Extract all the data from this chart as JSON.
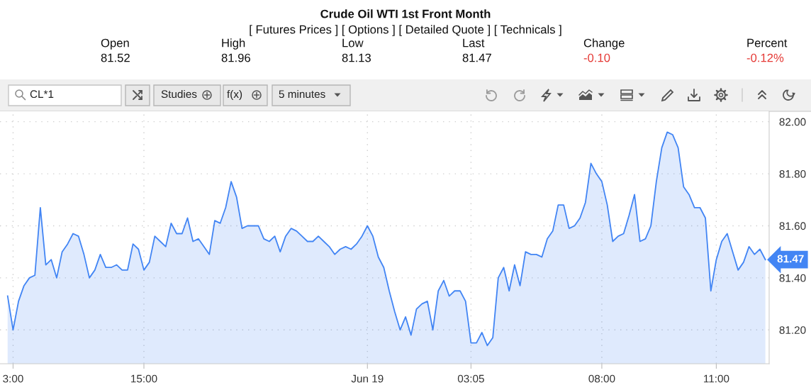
{
  "chart_data": {
    "type": "area",
    "title": "Crude Oil WTI 1st Front Month",
    "subtitle": "[ Futures Prices ] [ Options ] [ Detailed Quote ] [ Technicals ]",
    "annotations": [
      "Open",
      "81.52",
      "High",
      "81.96",
      "Low",
      "81.13",
      "Last",
      "81.47",
      "Change",
      "-0.10",
      "Percent",
      "-0.12%",
      "CL*1",
      "Studies",
      "f(x)",
      "5 minutes"
    ],
    "categories": [
      null,
      "3:00",
      null,
      null,
      null,
      null,
      null,
      null,
      null,
      null,
      null,
      null,
      null,
      null,
      null,
      null,
      null,
      null,
      null,
      null,
      null,
      null,
      null,
      null,
      null,
      "15:00",
      null,
      null,
      null,
      null,
      null,
      null,
      null,
      null,
      null,
      null,
      null,
      null,
      null,
      null,
      null,
      null,
      null,
      null,
      null,
      null,
      null,
      null,
      null,
      null,
      null,
      null,
      null,
      null,
      null,
      null,
      null,
      null,
      null,
      null,
      null,
      null,
      null,
      null,
      null,
      null,
      "Jun 19",
      null,
      null,
      null,
      null,
      null,
      null,
      null,
      null,
      null,
      null,
      null,
      null,
      null,
      null,
      null,
      null,
      null,
      null,
      "03:05",
      null,
      null,
      null,
      null,
      null,
      null,
      null,
      null,
      null,
      null,
      null,
      null,
      null,
      null,
      null,
      null,
      null,
      null,
      null,
      null,
      null,
      null,
      null,
      "08:00",
      null,
      null,
      null,
      null,
      null,
      null,
      null,
      null,
      null,
      null,
      null,
      null,
      null,
      null,
      null,
      null,
      null,
      null,
      null,
      null,
      "11:00",
      null,
      null,
      null,
      null,
      null,
      null,
      null,
      null,
      null
    ],
    "series": [
      {
        "color": "#4285f4",
        "values": [
          81.33,
          81.2,
          81.31,
          81.37,
          81.4,
          81.41,
          81.67,
          81.45,
          81.47,
          81.4,
          81.5,
          81.53,
          81.57,
          81.56,
          81.49,
          81.4,
          81.43,
          81.49,
          81.44,
          81.44,
          81.45,
          81.43,
          81.43,
          81.53,
          81.51,
          81.43,
          81.46,
          81.56,
          81.54,
          81.52,
          81.61,
          81.57,
          81.57,
          81.63,
          81.54,
          81.55,
          81.52,
          81.49,
          81.62,
          81.61,
          81.67,
          81.77,
          81.71,
          81.59,
          81.6,
          81.6,
          81.6,
          81.55,
          81.54,
          81.56,
          81.5,
          81.56,
          81.59,
          81.58,
          81.56,
          81.54,
          81.54,
          81.56,
          81.54,
          81.52,
          81.49,
          81.51,
          81.52,
          81.51,
          81.53,
          81.56,
          81.6,
          81.56,
          81.48,
          81.44,
          81.35,
          81.27,
          81.2,
          81.25,
          81.18,
          81.28,
          81.3,
          81.31,
          81.2,
          81.35,
          81.39,
          81.33,
          81.35,
          81.35,
          81.31,
          81.15,
          81.15,
          81.19,
          81.14,
          81.17,
          81.4,
          81.44,
          81.35,
          81.45,
          81.37,
          81.5,
          81.49,
          81.49,
          81.48,
          81.55,
          81.58,
          81.68,
          81.68,
          81.59,
          81.6,
          81.63,
          81.69,
          81.84,
          81.8,
          81.77,
          81.68,
          81.54,
          81.56,
          81.57,
          81.64,
          81.72,
          81.54,
          81.55,
          81.6,
          81.77,
          81.9,
          81.96,
          81.95,
          81.9,
          81.75,
          81.72,
          81.67,
          81.67,
          81.63,
          81.35,
          81.47,
          81.54,
          81.57,
          81.5,
          81.43,
          81.46,
          81.52,
          81.49,
          81.51,
          81.47
        ],
        "value_labels": [
          null,
          null,
          null,
          null,
          null,
          null,
          null,
          null,
          null,
          null,
          null,
          null,
          null,
          null,
          null,
          null,
          null,
          null,
          null,
          null,
          null,
          null,
          null,
          null,
          null,
          null,
          null,
          null,
          null,
          null,
          null,
          null,
          null,
          null,
          null,
          null,
          null,
          null,
          null,
          null,
          null,
          null,
          null,
          null,
          null,
          null,
          null,
          null,
          null,
          null,
          null,
          null,
          null,
          null,
          null,
          null,
          null,
          null,
          null,
          null,
          null,
          null,
          null,
          null,
          null,
          null,
          null,
          null,
          null,
          null,
          null,
          null,
          null,
          null,
          null,
          null,
          null,
          null,
          null,
          null,
          null,
          null,
          null,
          null,
          null,
          null,
          null,
          null,
          null,
          null,
          null,
          null,
          null,
          null,
          null,
          null,
          null,
          null,
          null,
          null,
          null,
          null,
          null,
          null,
          null,
          null,
          null,
          null,
          null,
          null,
          null,
          null,
          null,
          null,
          null,
          null,
          null,
          null,
          null,
          null,
          null,
          null,
          null,
          null,
          null,
          null,
          null,
          null,
          null,
          null,
          null,
          null,
          null,
          null,
          null,
          null,
          null,
          null,
          null,
          "81.47"
        ]
      }
    ],
    "ylim": [
      81.07,
      82.04
    ],
    "yticks": [
      {
        "value": 81.2,
        "label": "81.20"
      },
      {
        "value": 81.4,
        "label": "81.40"
      },
      {
        "value": 81.6,
        "label": "81.60"
      },
      {
        "value": 81.8,
        "label": "81.80"
      },
      {
        "value": 82.0,
        "label": "82.00"
      }
    ],
    "grid": true,
    "line_style": "solid"
  }
}
